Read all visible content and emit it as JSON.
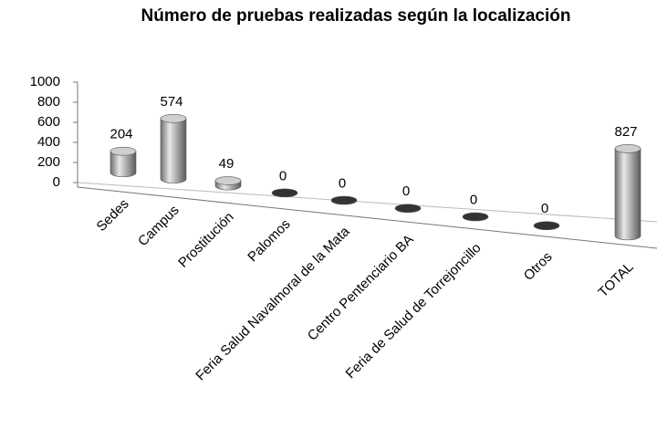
{
  "chart_data": {
    "type": "bar",
    "title": "Número de pruebas realizadas según la localización",
    "categories": [
      "Sedes",
      "Campus",
      "Prostitución",
      "Palomos",
      "Feria Salud Navalmoral de la Mata",
      "Centro Pentenciario BA",
      "Feria de Salud de Torrejoncillo",
      "Otros",
      "TOTAL"
    ],
    "values": [
      204,
      574,
      49,
      0,
      0,
      0,
      0,
      0,
      827
    ],
    "color": "#9a9a9a",
    "ylim": [
      0,
      1000
    ],
    "yticks": [
      0,
      200,
      400,
      600,
      800,
      1000
    ]
  }
}
